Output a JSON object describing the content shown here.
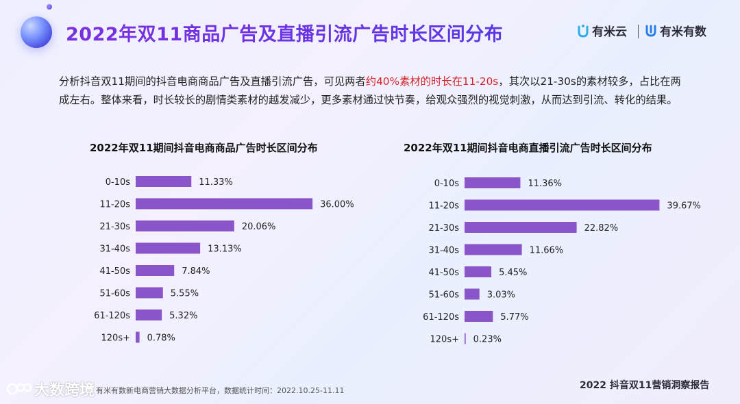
{
  "title": "2022年双11商品广告及直播引流广告时长区间分布",
  "logos": {
    "left": "有米云",
    "right": "有米有数"
  },
  "description": {
    "part1": "分析抖音双11期间的抖音电商商品广告及直播引流广告，可见两者",
    "highlight": "约40%素材的时长在11-20s",
    "part2": "，其次以21-30s的素材较多，占比在两成左右。整体来看，时长较长的剧情类素材的越发减少，更多素材通过快节奏，给观众强烈的视觉刺激，从而达到引流、转化的结果。"
  },
  "chart_data": [
    {
      "type": "bar",
      "orientation": "horizontal",
      "title": "2022年双11期间抖音电商商品广告时长区间分布",
      "categories": [
        "0-10s",
        "11-20s",
        "21-30s",
        "31-40s",
        "41-50s",
        "51-60s",
        "61-120s",
        "120s+"
      ],
      "values": [
        11.33,
        36.0,
        20.06,
        13.13,
        7.84,
        5.55,
        5.32,
        0.78
      ],
      "labels": [
        "11.33%",
        "36.00%",
        "20.06%",
        "13.13%",
        "7.84%",
        "5.55%",
        "5.32%",
        "0.78%"
      ],
      "color": "#8a55c9"
    },
    {
      "type": "bar",
      "orientation": "horizontal",
      "title": "2022年双11期间抖音电商直播引流广告时长区间分布",
      "categories": [
        "0-10s",
        "11-20s",
        "21-30s",
        "31-40s",
        "41-50s",
        "51-60s",
        "61-120s",
        "120s+"
      ],
      "values": [
        11.36,
        39.67,
        22.82,
        11.66,
        5.45,
        3.03,
        5.77,
        0.23
      ],
      "labels": [
        "11.36%",
        "39.67%",
        "22.82%",
        "11.66%",
        "5.45%",
        "3.03%",
        "5.77%",
        "0.23%"
      ],
      "color": "#8a55c9"
    }
  ],
  "footer": {
    "note": "有米有数新电商营销大数据分析平台，数据统计时间：2022.10.25-11.11",
    "brand": "2022 抖音双11营销洞察报告",
    "watermark": "大数跨境"
  }
}
